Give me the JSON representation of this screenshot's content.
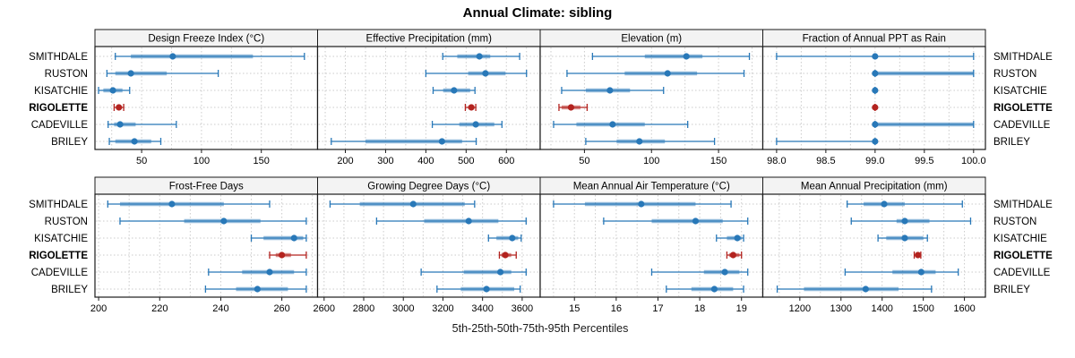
{
  "chart_data": {
    "type": "dotplot-percentiles",
    "title": "Annual Climate: sibling",
    "xlabel": "5th-25th-50th-75th-95th Percentiles",
    "legend_position": "none",
    "grid": "dotted",
    "sites": [
      "SMITHDALE",
      "RUSTON",
      "KISATCHIE",
      "RIGOLETTE",
      "CADEVILLE",
      "BRILEY"
    ],
    "highlight_site": "RIGOLETTE",
    "percentile_labels": [
      "5th",
      "25th",
      "50th",
      "75th",
      "95th"
    ],
    "colors": {
      "series": "#2878b8",
      "highlight": "#b3231f",
      "grid": "#cbcbcb",
      "strip_bg": "#f3f3f3",
      "border": "#1a1a1a",
      "text": "#000000"
    },
    "panels": [
      {
        "title": "Design Freeze Index (°C)",
        "row": 0,
        "col": 0,
        "domain": [
          11,
          197
        ],
        "ticks": [
          50,
          100,
          150
        ],
        "grid_step": 25,
        "tick_decimals": 0,
        "site_values": {
          "SMITHDALE": [
            28,
            41,
            76,
            143,
            186
          ],
          "RUSTON": [
            21,
            28,
            41,
            71,
            114
          ],
          "KISATCHIE": [
            14,
            18,
            26,
            34,
            40
          ],
          "RIGOLETTE": [
            27,
            29,
            31,
            33,
            35
          ],
          "CADEVILLE": [
            22,
            27,
            32,
            45,
            79
          ],
          "BRILEY": [
            23,
            28,
            44,
            58,
            66
          ]
        }
      },
      {
        "title": "Effective Precipitation (mm)",
        "row": 0,
        "col": 1,
        "domain": [
          131,
          684
        ],
        "ticks": [
          200,
          300,
          400,
          500,
          600
        ],
        "grid_step": 50,
        "tick_decimals": 0,
        "site_values": {
          "SMITHDALE": [
            442,
            478,
            533,
            560,
            633
          ],
          "RUSTON": [
            400,
            505,
            548,
            598,
            650
          ],
          "KISATCHIE": [
            418,
            443,
            470,
            510,
            522
          ],
          "RIGOLETTE": [
            498,
            505,
            513,
            520,
            524
          ],
          "CADEVILLE": [
            416,
            483,
            524,
            570,
            589
          ],
          "BRILEY": [
            165,
            250,
            440,
            490,
            525
          ]
        }
      },
      {
        "title": "Elevation (m)",
        "row": 0,
        "col": 2,
        "domain": [
          17,
          183
        ],
        "ticks": [
          50,
          100,
          150
        ],
        "grid_step": 25,
        "tick_decimals": 0,
        "site_values": {
          "SMITHDALE": [
            56,
            95,
            126,
            138,
            173
          ],
          "RUSTON": [
            37,
            80,
            112,
            134,
            169
          ],
          "KISATCHIE": [
            33,
            51,
            69,
            84,
            109
          ],
          "RIGOLETTE": [
            31,
            33,
            40,
            47,
            52
          ],
          "CADEVILLE": [
            27,
            44,
            71,
            95,
            127
          ],
          "BRILEY": [
            51,
            74,
            91,
            110,
            147
          ]
        }
      },
      {
        "title": "Fraction of Annual PPT as Rain",
        "row": 0,
        "col": 3,
        "domain": [
          97.86,
          100.12
        ],
        "ticks": [
          98.0,
          98.5,
          99.0,
          99.5,
          100.0
        ],
        "grid_step": 0.25,
        "tick_decimals": 1,
        "site_values": {
          "SMITHDALE": [
            98,
            99,
            99,
            99,
            100
          ],
          "RUSTON": [
            99,
            99,
            99,
            100,
            100
          ],
          "KISATCHIE": [
            99,
            99,
            99,
            99,
            99
          ],
          "RIGOLETTE": [
            99,
            99,
            99,
            99,
            99
          ],
          "CADEVILLE": [
            99,
            99,
            99,
            100,
            100
          ],
          "BRILEY": [
            98,
            99,
            99,
            99,
            99
          ]
        }
      },
      {
        "title": "Frost-Free Days",
        "row": 1,
        "col": 0,
        "domain": [
          198.8,
          271.7
        ],
        "ticks": [
          200,
          220,
          240,
          260
        ],
        "grid_step": 10,
        "tick_decimals": 0,
        "site_values": {
          "SMITHDALE": [
            203,
            207,
            224,
            241,
            256
          ],
          "RUSTON": [
            207,
            228,
            241,
            253,
            268
          ],
          "KISATCHIE": [
            250,
            254,
            264,
            267,
            268
          ],
          "RIGOLETTE": [
            256,
            258,
            260,
            263,
            268
          ],
          "CADEVILLE": [
            236,
            247,
            256,
            264,
            268
          ],
          "BRILEY": [
            235,
            245,
            252,
            262,
            268
          ]
        }
      },
      {
        "title": "Growing Degree Days (°C)",
        "row": 1,
        "col": 1,
        "domain": [
          2567,
          3691
        ],
        "ticks": [
          2600,
          2800,
          3000,
          3200,
          3400,
          3600
        ],
        "grid_step": 100,
        "tick_decimals": 0,
        "site_values": {
          "SMITHDALE": [
            2630,
            2780,
            3050,
            3310,
            3360
          ],
          "RUSTON": [
            2865,
            3105,
            3330,
            3480,
            3620
          ],
          "KISATCHIE": [
            3430,
            3470,
            3550,
            3580,
            3595
          ],
          "RIGOLETTE": [
            3485,
            3495,
            3515,
            3545,
            3570
          ],
          "CADEVILLE": [
            3090,
            3305,
            3490,
            3545,
            3620
          ],
          "BRILEY": [
            3170,
            3290,
            3420,
            3560,
            3590
          ]
        }
      },
      {
        "title": "Mean Annual Air Temperature (°C)",
        "row": 1,
        "col": 2,
        "domain": [
          14.18,
          19.51
        ],
        "ticks": [
          15,
          16,
          17,
          18,
          19
        ],
        "grid_step": 0.5,
        "tick_decimals": 0,
        "site_values": {
          "SMITHDALE": [
            14.5,
            15.25,
            16.6,
            17.9,
            18.75
          ],
          "RUSTON": [
            15.7,
            16.85,
            17.9,
            18.55,
            19.15
          ],
          "KISATCHIE": [
            18.4,
            18.65,
            18.9,
            19.0,
            19.05
          ],
          "RIGOLETTE": [
            18.65,
            18.7,
            18.8,
            18.95,
            19.0
          ],
          "CADEVILLE": [
            16.85,
            18.1,
            18.6,
            18.95,
            19.15
          ],
          "BRILEY": [
            17.2,
            17.8,
            18.35,
            18.8,
            19.05
          ]
        }
      },
      {
        "title": "Mean Annual Precipitation (mm)",
        "row": 1,
        "col": 3,
        "domain": [
          1110,
          1651
        ],
        "ticks": [
          1200,
          1300,
          1400,
          1500,
          1600
        ],
        "grid_step": 50,
        "tick_decimals": 0,
        "site_values": {
          "SMITHDALE": [
            1315,
            1355,
            1405,
            1455,
            1595
          ],
          "RUSTON": [
            1325,
            1435,
            1455,
            1515,
            1615
          ],
          "KISATCHIE": [
            1390,
            1410,
            1455,
            1500,
            1510
          ],
          "RIGOLETTE": [
            1478,
            1482,
            1487,
            1491,
            1494
          ],
          "CADEVILLE": [
            1310,
            1425,
            1495,
            1530,
            1585
          ],
          "BRILEY": [
            1145,
            1210,
            1360,
            1440,
            1520
          ]
        }
      }
    ]
  }
}
